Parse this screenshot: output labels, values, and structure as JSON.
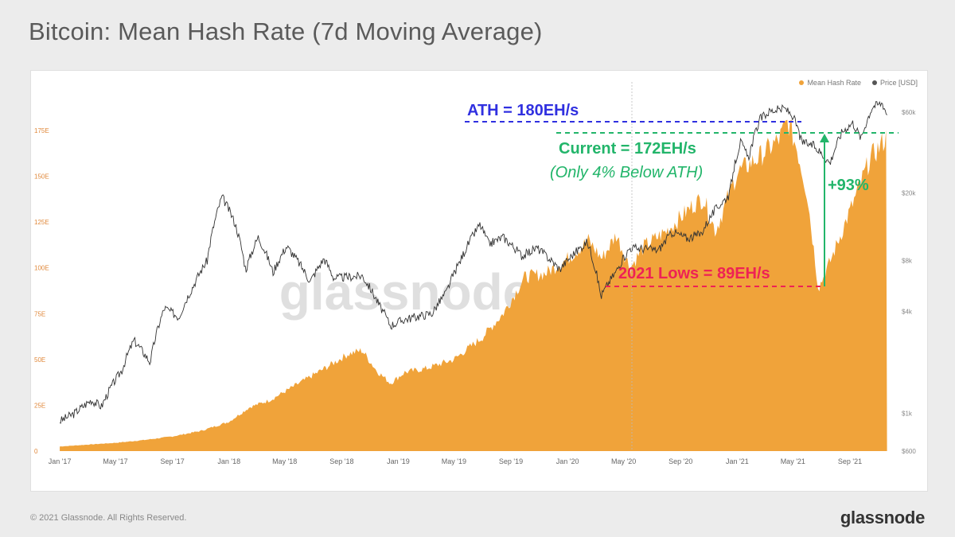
{
  "title": "Bitcoin: Mean Hash Rate (7d Moving Average)",
  "footer": {
    "copyright": "© 2021 Glassnode. All Rights Reserved.",
    "brand": "glassnode"
  },
  "watermark": "glassnode",
  "colors": {
    "hashrate": "#f0a33a",
    "price": "#333333",
    "ath": "#3030e0",
    "current": "#22b56a",
    "lows": "#ee2255",
    "axis_left": "#e0883a",
    "axis_right": "#888888"
  },
  "chart_data": {
    "type": "area",
    "legend": [
      "Mean Hash Rate",
      "Price [USD]"
    ],
    "legend_position": "top-right",
    "grid": false,
    "x_ticks": [
      "Jan '17",
      "May '17",
      "Sep '17",
      "Jan '18",
      "May '18",
      "Sep '18",
      "Jan '19",
      "May '19",
      "Sep '19",
      "Jan '20",
      "May '20",
      "Sep '20",
      "Jan '21",
      "May '21",
      "Sep '21"
    ],
    "y_left_ticks": [
      "0",
      "25E",
      "50E",
      "75E",
      "100E",
      "125E",
      "150E",
      "175E"
    ],
    "y_left_range": [
      0,
      185
    ],
    "y_right_ticks": [
      "$600",
      "$1k",
      "$4k",
      "$8k",
      "$20k",
      "$60k"
    ],
    "y_right_scale": "log",
    "y_right_range": [
      600,
      60000
    ],
    "series": [
      {
        "name": "Mean Hash Rate",
        "axis": "left",
        "points": [
          [
            "2017-01-01",
            2.5
          ],
          [
            "2017-03-01",
            3.5
          ],
          [
            "2017-05-01",
            4.5
          ],
          [
            "2017-07-01",
            6
          ],
          [
            "2017-09-01",
            8
          ],
          [
            "2017-11-01",
            11
          ],
          [
            "2018-01-01",
            16
          ],
          [
            "2018-02-15",
            24
          ],
          [
            "2018-04-01",
            28
          ],
          [
            "2018-06-01",
            37
          ],
          [
            "2018-08-01",
            46
          ],
          [
            "2018-09-15",
            53
          ],
          [
            "2018-10-15",
            55
          ],
          [
            "2018-11-15",
            44
          ],
          [
            "2018-12-15",
            37
          ],
          [
            "2019-01-15",
            43
          ],
          [
            "2019-03-01",
            45
          ],
          [
            "2019-05-01",
            50
          ],
          [
            "2019-07-01",
            62
          ],
          [
            "2019-08-15",
            75
          ],
          [
            "2019-10-01",
            95
          ],
          [
            "2019-11-15",
            97
          ],
          [
            "2020-01-01",
            105
          ],
          [
            "2020-02-15",
            115
          ],
          [
            "2020-03-15",
            105
          ],
          [
            "2020-04-15",
            118
          ],
          [
            "2020-05-15",
            100
          ],
          [
            "2020-06-15",
            112
          ],
          [
            "2020-08-01",
            120
          ],
          [
            "2020-10-01",
            135
          ],
          [
            "2020-10-20",
            138
          ],
          [
            "2020-11-15",
            120
          ],
          [
            "2021-01-01",
            152
          ],
          [
            "2021-02-15",
            160
          ],
          [
            "2021-04-01",
            170
          ],
          [
            "2021-04-20",
            180
          ],
          [
            "2021-05-10",
            165
          ],
          [
            "2021-06-01",
            140
          ],
          [
            "2021-06-25",
            89
          ],
          [
            "2021-07-15",
            100
          ],
          [
            "2021-08-15",
            120
          ],
          [
            "2021-09-15",
            140
          ],
          [
            "2021-10-15",
            160
          ],
          [
            "2021-11-01",
            165
          ],
          [
            "2021-11-20",
            172
          ]
        ]
      },
      {
        "name": "Price [USD]",
        "axis": "right",
        "points": [
          [
            "2017-01-01",
            900
          ],
          [
            "2017-02-01",
            1000
          ],
          [
            "2017-03-10",
            1200
          ],
          [
            "2017-04-01",
            1100
          ],
          [
            "2017-05-15",
            1800
          ],
          [
            "2017-06-10",
            2700
          ],
          [
            "2017-07-15",
            2000
          ],
          [
            "2017-08-15",
            4200
          ],
          [
            "2017-09-15",
            3700
          ],
          [
            "2017-10-15",
            5600
          ],
          [
            "2017-11-15",
            8000
          ],
          [
            "2017-12-17",
            19000
          ],
          [
            "2018-01-15",
            13000
          ],
          [
            "2018-02-06",
            7000
          ],
          [
            "2018-03-05",
            11000
          ],
          [
            "2018-04-06",
            6800
          ],
          [
            "2018-05-05",
            9700
          ],
          [
            "2018-06-25",
            6000
          ],
          [
            "2018-07-25",
            8200
          ],
          [
            "2018-08-15",
            6300
          ],
          [
            "2018-10-15",
            6500
          ],
          [
            "2018-11-20",
            4400
          ],
          [
            "2018-12-15",
            3300
          ],
          [
            "2019-01-15",
            3600
          ],
          [
            "2019-03-15",
            3900
          ],
          [
            "2019-04-15",
            5200
          ],
          [
            "2019-05-15",
            8000
          ],
          [
            "2019-06-26",
            13000
          ],
          [
            "2019-07-15",
            10000
          ],
          [
            "2019-08-15",
            11000
          ],
          [
            "2019-09-25",
            8500
          ],
          [
            "2019-10-27",
            9500
          ],
          [
            "2019-12-15",
            7100
          ],
          [
            "2020-01-15",
            8800
          ],
          [
            "2020-02-13",
            10300
          ],
          [
            "2020-03-13",
            4900
          ],
          [
            "2020-04-15",
            6900
          ],
          [
            "2020-05-15",
            9500
          ],
          [
            "2020-06-15",
            9400
          ],
          [
            "2020-07-15",
            9200
          ],
          [
            "2020-08-15",
            11800
          ],
          [
            "2020-09-15",
            10800
          ],
          [
            "2020-10-15",
            11500
          ],
          [
            "2020-11-15",
            16000
          ],
          [
            "2020-12-15",
            19500
          ],
          [
            "2021-01-08",
            40000
          ],
          [
            "2021-01-25",
            32000
          ],
          [
            "2021-02-20",
            55000
          ],
          [
            "2021-03-13",
            61000
          ],
          [
            "2021-04-14",
            63000
          ],
          [
            "2021-05-01",
            57000
          ],
          [
            "2021-05-20",
            40000
          ],
          [
            "2021-06-15",
            38000
          ],
          [
            "2021-07-20",
            30000
          ],
          [
            "2021-08-15",
            46000
          ],
          [
            "2021-09-07",
            52000
          ],
          [
            "2021-09-25",
            42000
          ],
          [
            "2021-10-20",
            65000
          ],
          [
            "2021-11-10",
            68000
          ],
          [
            "2021-11-20",
            58000
          ]
        ]
      }
    ],
    "annotations": [
      {
        "text": "ATH = 180EH/s",
        "value": 180,
        "color": "#3030e0"
      },
      {
        "text": "Current = 172EH/s",
        "value": 172,
        "color": "#22b56a"
      },
      {
        "text": "(Only 4% Below ATH)",
        "color": "#22b56a"
      },
      {
        "text": "2021 Lows = 89EH/s",
        "value": 89,
        "color": "#ee2255"
      },
      {
        "text": "+93%",
        "color": "#22b56a"
      }
    ]
  }
}
